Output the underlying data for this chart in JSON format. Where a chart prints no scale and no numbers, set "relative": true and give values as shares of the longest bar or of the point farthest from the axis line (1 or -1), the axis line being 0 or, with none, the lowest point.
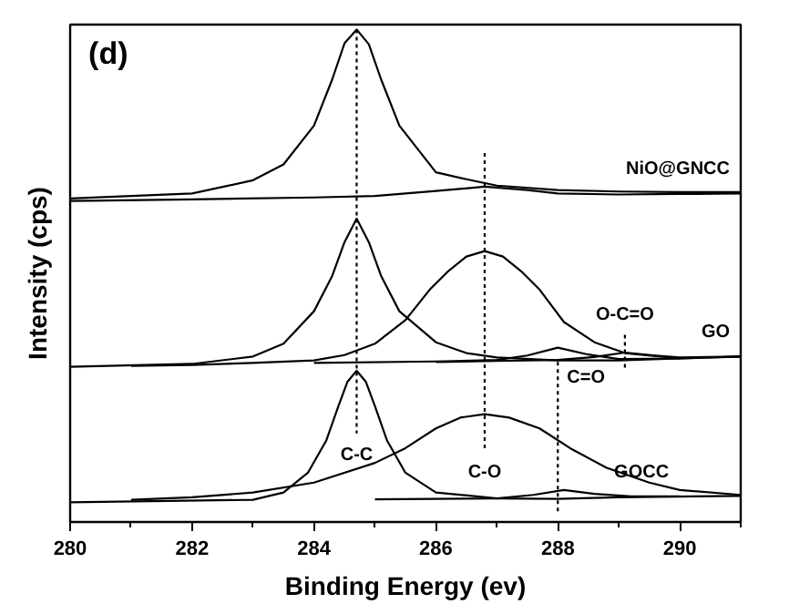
{
  "chart_data": {
    "type": "line",
    "relative": true,
    "xlabel": "Binding Energy (ev)",
    "ylabel": "Intensity (cps)",
    "xlim": [
      280,
      291
    ],
    "xticks": [
      280,
      {
        "value": 281,
        "label": null
      },
      282,
      {
        "value": 283,
        "label": null
      },
      284,
      {
        "value": 285,
        "label": null
      },
      286,
      {
        "value": 287,
        "label": null
      },
      288,
      {
        "value": 289,
        "label": null
      },
      290,
      {
        "value": 291,
        "label": null
      }
    ],
    "grid": false,
    "tick_labels": "x",
    "series": [
      {
        "color": "#000000",
        "x": [
          280,
          281,
          282,
          283,
          283.5,
          284,
          284.3,
          284.5,
          284.7,
          284.9,
          285.1,
          285.4,
          286,
          286.5,
          287,
          288,
          289,
          290,
          291
        ],
        "values": [
          0.657,
          0.662,
          0.667,
          0.694,
          0.726,
          0.805,
          0.899,
          0.972,
          1.0,
          0.97,
          0.899,
          0.805,
          0.71,
          0.696,
          0.683,
          0.674,
          0.671,
          0.67,
          0.67
        ]
      },
      {
        "name": "NiO@GNCC",
        "color": "#000000",
        "x": [
          280,
          282,
          284,
          285,
          286,
          286.8,
          287.5,
          288,
          289,
          290,
          291
        ],
        "values": [
          0.652,
          0.655,
          0.659,
          0.662,
          0.672,
          0.681,
          0.674,
          0.667,
          0.665,
          0.666,
          0.667
        ]
      },
      {
        "color": "#000000",
        "x": [
          280,
          282,
          283,
          283.5,
          284,
          284.3,
          284.5,
          284.7,
          284.9,
          285.1,
          285.4,
          286,
          286.5,
          287,
          288,
          289,
          290,
          291
        ],
        "values": [
          0.315,
          0.321,
          0.336,
          0.362,
          0.428,
          0.5,
          0.568,
          0.616,
          0.568,
          0.5,
          0.428,
          0.365,
          0.343,
          0.334,
          0.328,
          0.328,
          0.332,
          0.336
        ]
      },
      {
        "color": "#000000",
        "x": [
          281,
          282,
          283,
          284,
          284.5,
          285,
          285.5,
          285.9,
          286.2,
          286.5,
          286.8,
          287.1,
          287.4,
          287.7,
          288.1,
          288.6,
          289.1,
          290,
          291
        ],
        "values": [
          0.317,
          0.319,
          0.323,
          0.328,
          0.339,
          0.362,
          0.41,
          0.472,
          0.509,
          0.539,
          0.55,
          0.539,
          0.509,
          0.472,
          0.406,
          0.365,
          0.343,
          0.332,
          0.336
        ]
      },
      {
        "color": "#000000",
        "x": [
          284,
          286,
          287,
          287.5,
          288,
          288.5,
          289,
          290
        ],
        "values": [
          0.323,
          0.326,
          0.329,
          0.338,
          0.354,
          0.34,
          0.331,
          0.332
        ]
      },
      {
        "name": "GO",
        "color": "#000000",
        "x": [
          286,
          287,
          288,
          288.6,
          289.1,
          289.6,
          290,
          291
        ],
        "values": [
          0.325,
          0.327,
          0.329,
          0.335,
          0.344,
          0.338,
          0.334,
          0.336
        ]
      },
      {
        "color": "#000000",
        "x": [
          280,
          283,
          283.5,
          283.9,
          284.2,
          284.4,
          284.55,
          284.7,
          284.85,
          285.0,
          285.2,
          285.5,
          286,
          287,
          288,
          289,
          291
        ],
        "values": [
          0.04,
          0.045,
          0.06,
          0.1,
          0.165,
          0.235,
          0.285,
          0.307,
          0.285,
          0.235,
          0.165,
          0.1,
          0.06,
          0.048,
          0.047,
          0.05,
          0.053
        ]
      },
      {
        "color": "#000000",
        "x": [
          281,
          282,
          283,
          284,
          285,
          285.5,
          286,
          286.4,
          286.8,
          287.2,
          287.7,
          288.2,
          288.8,
          289.5,
          290,
          291
        ],
        "values": [
          0.045,
          0.05,
          0.06,
          0.08,
          0.12,
          0.15,
          0.19,
          0.212,
          0.219,
          0.212,
          0.19,
          0.15,
          0.11,
          0.08,
          0.065,
          0.055
        ]
      },
      {
        "name": "GOCC",
        "color": "#000000",
        "x": [
          285,
          287,
          287.6,
          288.1,
          288.6,
          289.2,
          290
        ],
        "values": [
          0.046,
          0.048,
          0.055,
          0.065,
          0.057,
          0.052,
          0.052
        ]
      },
      {
        "name": "C-C",
        "color": "#000000",
        "line_style": "dotted",
        "x": [
          284.7,
          284.7
        ],
        "values": [
          1.0,
          0.18
        ]
      },
      {
        "name": "C-O",
        "color": "#000000",
        "line_style": "dotted",
        "x": [
          286.8,
          286.8
        ],
        "values": [
          0.749,
          0.145
        ]
      },
      {
        "name": "C=O",
        "color": "#000000",
        "line_style": "dotted",
        "x": [
          288.0,
          288.0
        ],
        "values": [
          0.325,
          0.016
        ]
      },
      {
        "name": "O-C=O",
        "color": "#000000",
        "line_style": "dotted",
        "x": [
          289.1,
          289.1
        ],
        "values": [
          0.38,
          0.306
        ]
      }
    ],
    "annotations": [
      "(d)"
    ]
  }
}
